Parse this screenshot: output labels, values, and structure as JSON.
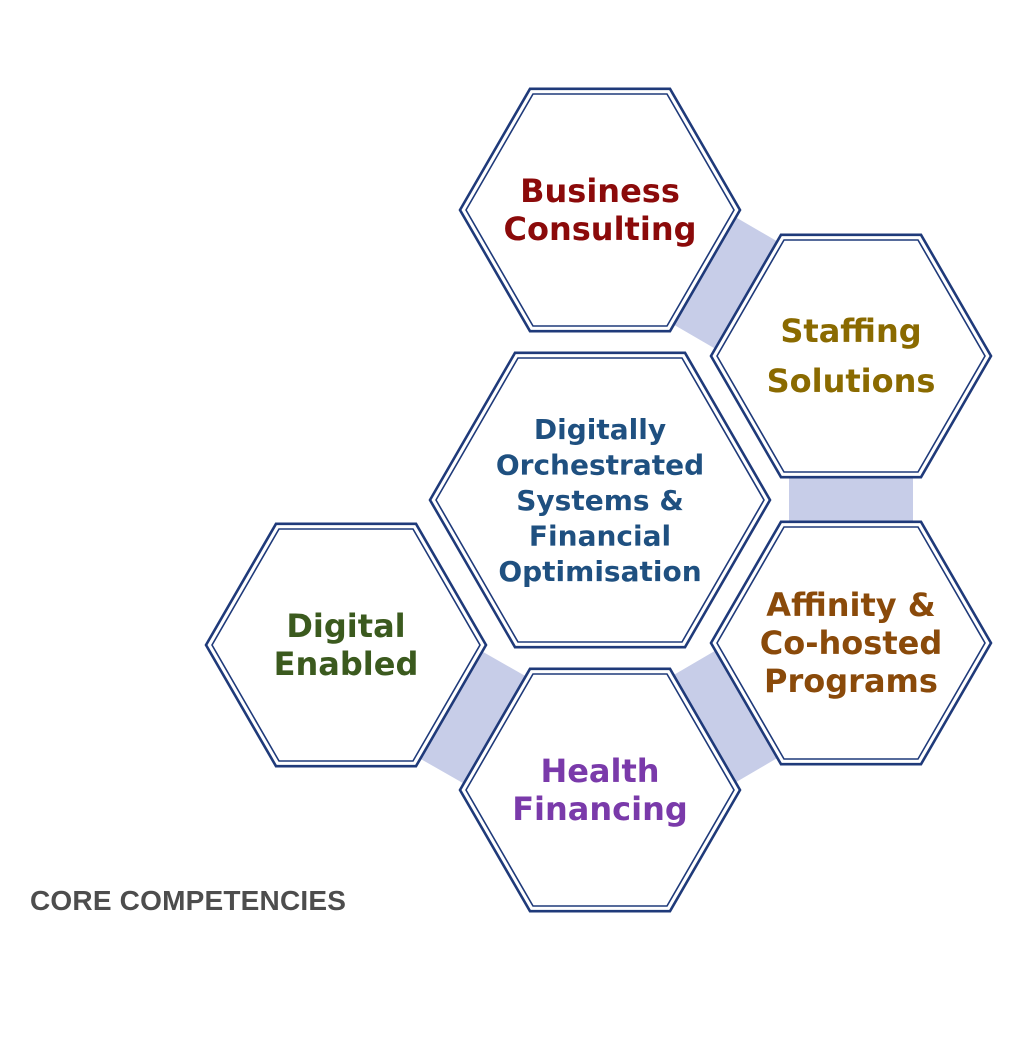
{
  "diagram": {
    "caption": "CORE COMPETENCIES",
    "colors": {
      "hex_border": "#1f3a7a",
      "connector": "#c7cde8"
    },
    "nodes": [
      {
        "id": "business-consulting",
        "lines": [
          "Business",
          "Consulting"
        ],
        "color": "#8b0a0a"
      },
      {
        "id": "staffing-solutions",
        "lines": [
          "Staffing",
          "Solutions"
        ],
        "color": "#8a6a00"
      },
      {
        "id": "digitally-orchestrated",
        "lines": [
          "Digitally",
          "Orchestrated",
          "Systems &",
          "Financial",
          "Optimisation"
        ],
        "color": "#1f5080"
      },
      {
        "id": "digital-enabled",
        "lines": [
          "Digital",
          "Enabled"
        ],
        "color": "#3b5a1e"
      },
      {
        "id": "affinity-cohosted",
        "lines": [
          "Affinity &",
          "Co-hosted",
          "Programs"
        ],
        "color": "#8a4a0a"
      },
      {
        "id": "health-financing",
        "lines": [
          "Health",
          "Financing"
        ],
        "color": "#7a3aaa"
      }
    ],
    "connections": [
      [
        "business-consulting",
        "staffing-solutions"
      ],
      [
        "staffing-solutions",
        "affinity-cohosted"
      ],
      [
        "affinity-cohosted",
        "health-financing"
      ],
      [
        "health-financing",
        "digital-enabled"
      ]
    ]
  }
}
